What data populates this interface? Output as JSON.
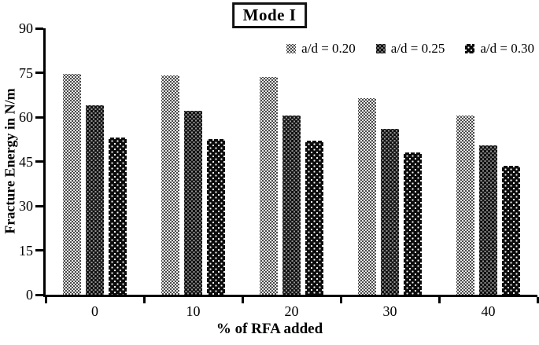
{
  "figure_title": "Mode I",
  "chart_data": {
    "type": "bar",
    "title": "Mode I",
    "categories": [
      "0",
      "10",
      "20",
      "30",
      "40"
    ],
    "series": [
      {
        "name": "a/d = 0.20",
        "values": [
          74.5,
          74,
          73.5,
          66.5,
          60.5
        ]
      },
      {
        "name": "a/d = 0.25",
        "values": [
          64,
          62,
          60.5,
          56,
          50.5
        ]
      },
      {
        "name": "a/d = 0.30",
        "values": [
          53,
          52.5,
          52,
          48,
          43.5
        ]
      }
    ],
    "xlabel": "% of RFA added",
    "ylabel": "Fracture Energy in N/m",
    "ylim": [
      0,
      90
    ],
    "yticks": [
      0,
      15,
      30,
      45,
      60,
      75,
      90
    ],
    "grid": false,
    "legend_position": "top-right",
    "bar_pattern_styles": [
      "light-gray-dotted",
      "medium-gray-dotted",
      "black-white-dotted"
    ],
    "colors": {
      "axis": "#000000",
      "text": "#000000",
      "background": "#ffffff",
      "series_fill_avg": [
        "#a8a8a8",
        "#6e6e6e",
        "#1a1a1a"
      ]
    }
  }
}
